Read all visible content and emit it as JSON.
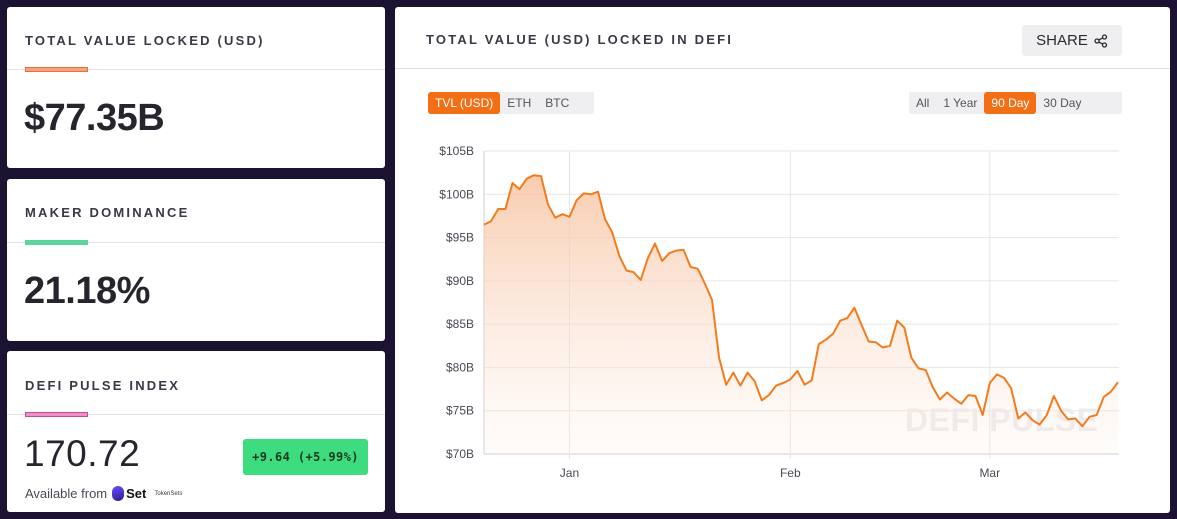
{
  "stats": [
    {
      "label": "TOTAL VALUE LOCKED (USD)",
      "value": "$77.35B",
      "accent": "#f38a58"
    },
    {
      "label": "MAKER DOMINANCE",
      "value": "21.18%",
      "accent": "#5fd39d"
    },
    {
      "label": "DEFI PULSE INDEX",
      "value": "170.72",
      "accent": "#e066ad",
      "change": "+9.64  (+5.99%)",
      "available_from": "Available from",
      "set_name": "Set",
      "tokensets": "TokenSets"
    }
  ],
  "chart_card": {
    "title": "TOTAL VALUE (USD) LOCKED IN DEFI",
    "share_label": "SHARE",
    "metrics": [
      "TVL (USD)",
      "ETH",
      "BTC"
    ],
    "metric_active": "TVL (USD)",
    "ranges": [
      "All",
      "1 Year",
      "90 Day",
      "30 Day"
    ],
    "range_active": "90 Day",
    "watermark": "DEFI PULSE"
  },
  "colors": {
    "accent": "#f36f16",
    "background": "#1c1333",
    "positive": "#3ddc7e"
  },
  "icons": [
    "share-icon"
  ],
  "chart_data": {
    "type": "area",
    "ylabel": "",
    "xlabel": "",
    "ylim": [
      70,
      105
    ],
    "yticks": [
      "$70B",
      "$75B",
      "$80B",
      "$85B",
      "$90B",
      "$95B",
      "$100B",
      "$105B"
    ],
    "xticks": [
      {
        "label": "Jan",
        "index": 12
      },
      {
        "label": "Feb",
        "index": 43
      },
      {
        "label": "Mar",
        "index": 71
      }
    ],
    "grid": true,
    "series": [
      {
        "values": [
          96.5,
          96.9,
          98.3,
          98.3,
          101.3,
          100.6,
          101.8,
          102.2,
          102.1,
          98.8,
          97.3,
          97.7,
          97.4,
          99.3,
          100.1,
          100.0,
          100.3,
          97.1,
          95.6,
          92.9,
          91.2,
          91.0,
          90.1,
          92.6,
          94.3,
          92.3,
          93.2,
          93.5,
          93.6,
          91.6,
          91.4,
          89.7,
          87.8,
          81.1,
          78.0,
          79.4,
          77.9,
          79.4,
          78.4,
          76.2,
          76.8,
          77.9,
          78.2,
          78.6,
          79.6,
          78.0,
          78.5,
          82.7,
          83.2,
          83.9,
          85.4,
          85.7,
          86.9,
          84.9,
          83.0,
          82.9,
          82.3,
          82.5,
          85.4,
          84.6,
          81.1,
          79.9,
          79.7,
          77.7,
          76.3,
          77.1,
          76.4,
          75.8,
          76.8,
          76.7,
          74.5,
          78.2,
          79.2,
          78.8,
          77.6,
          74.1,
          74.8,
          73.9,
          73.4,
          74.5,
          76.7,
          75.0,
          74.0,
          74.1,
          73.2,
          74.3,
          74.5,
          76.6,
          77.2,
          78.3
        ]
      }
    ]
  }
}
